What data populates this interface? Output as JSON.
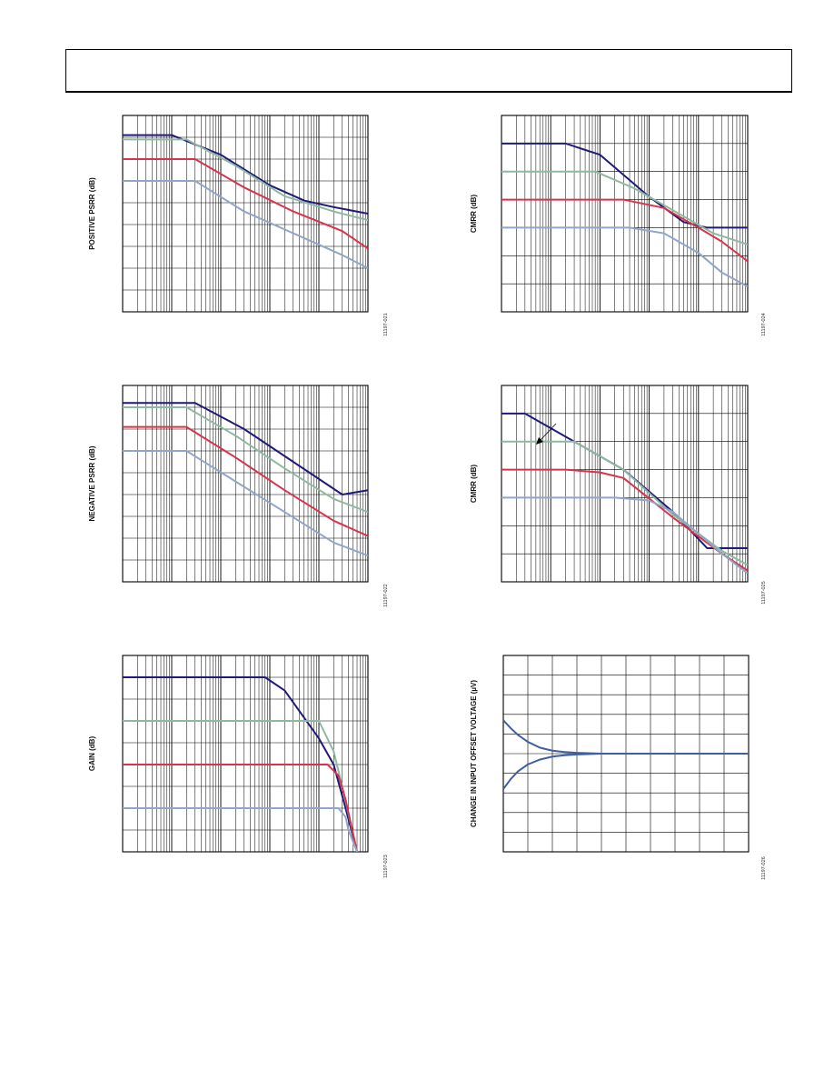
{
  "page": {
    "header": ""
  },
  "colors": {
    "navy": "#1f1a7a",
    "green": "#8fb8a0",
    "red": "#d8334a",
    "lightblue": "#8fa6c8",
    "blue": "#3f5f9f"
  },
  "chart_data": [
    {
      "id": "positive-psrr",
      "type": "line",
      "ylabel": "POSITIVE PSRR (dB)",
      "figure_id": "11197-021",
      "x_scale": "log",
      "grid": true,
      "xlim": [
        10,
        1000000
      ],
      "ylim": [
        0,
        9
      ],
      "series": [
        {
          "color": "#1f1a7a",
          "x": [
            10,
            100,
            1000,
            10000,
            50000,
            200000,
            1000000
          ],
          "y": [
            8.1,
            8.1,
            7.2,
            5.8,
            5.1,
            4.8,
            4.5
          ]
        },
        {
          "color": "#8fb8a0",
          "x": [
            10,
            200,
            2000,
            20000,
            200000,
            1000000
          ],
          "y": [
            7.9,
            7.9,
            6.7,
            5.3,
            4.6,
            4.2
          ]
        },
        {
          "color": "#d8334a",
          "x": [
            10,
            300,
            3000,
            30000,
            300000,
            1000000
          ],
          "y": [
            7.0,
            7.0,
            5.7,
            4.6,
            3.7,
            2.9
          ]
        },
        {
          "color": "#8fa6c8",
          "x": [
            10,
            300,
            3000,
            30000,
            300000,
            1000000
          ],
          "y": [
            6.0,
            6.0,
            4.6,
            3.6,
            2.6,
            2.0
          ]
        }
      ]
    },
    {
      "id": "cmrr-top",
      "type": "line",
      "ylabel": "CMRR (dB)",
      "figure_id": "11197-024",
      "x_scale": "log",
      "grid": true,
      "xlim": [
        10,
        1000000
      ],
      "ylim": [
        0,
        7
      ],
      "series": [
        {
          "color": "#1f1a7a",
          "x": [
            10,
            200,
            1000,
            10000,
            50000,
            150000,
            300000,
            1000000
          ],
          "y": [
            6.0,
            6.0,
            5.6,
            4.1,
            3.2,
            3.0,
            3.0,
            3.0
          ]
        },
        {
          "color": "#8fb8a0",
          "x": [
            10,
            800,
            5000,
            40000,
            200000,
            1000000
          ],
          "y": [
            5.0,
            5.0,
            4.4,
            3.5,
            2.8,
            2.4
          ]
        },
        {
          "color": "#d8334a",
          "x": [
            10,
            3000,
            20000,
            100000,
            300000,
            1000000
          ],
          "y": [
            4.0,
            4.0,
            3.7,
            3.0,
            2.5,
            1.8
          ]
        },
        {
          "color": "#8fa6c8",
          "x": [
            10,
            4000,
            20000,
            100000,
            300000,
            1000000
          ],
          "y": [
            3.0,
            3.0,
            2.8,
            2.1,
            1.4,
            0.9
          ]
        }
      ]
    },
    {
      "id": "negative-psrr",
      "type": "line",
      "ylabel": "NEGATIVE PSRR (dB)",
      "figure_id": "11197-022",
      "x_scale": "log",
      "grid": true,
      "xlim": [
        10,
        1000000
      ],
      "ylim": [
        0,
        9
      ],
      "series": [
        {
          "color": "#1f1a7a",
          "x": [
            10,
            300,
            3000,
            30000,
            300000,
            1000000
          ],
          "y": [
            8.2,
            8.2,
            7.0,
            5.5,
            4.0,
            4.2
          ]
        },
        {
          "color": "#8fb8a0",
          "x": [
            10,
            200,
            2000,
            20000,
            200000,
            1000000
          ],
          "y": [
            8.0,
            8.0,
            6.7,
            5.2,
            3.8,
            3.2
          ]
        },
        {
          "color": "#d8334a",
          "x": [
            10,
            200,
            2000,
            20000,
            200000,
            1000000
          ],
          "y": [
            7.1,
            7.1,
            5.7,
            4.2,
            2.8,
            2.1
          ]
        },
        {
          "color": "#8fa6c8",
          "x": [
            10,
            200,
            2000,
            20000,
            200000,
            1000000
          ],
          "y": [
            6.0,
            6.0,
            4.6,
            3.2,
            1.8,
            1.2
          ]
        }
      ]
    },
    {
      "id": "cmrr-bottom",
      "type": "line",
      "ylabel": "CMRR (dB)",
      "figure_id": "11197-025",
      "x_scale": "log",
      "grid": true,
      "xlim": [
        10,
        1000000
      ],
      "ylim": [
        0,
        7
      ],
      "series": [
        {
          "color": "#1f1a7a",
          "x": [
            10,
            30,
            300,
            3000,
            30000,
            150000,
            300000,
            1000000
          ],
          "y": [
            6.0,
            6.0,
            5.0,
            4.0,
            2.5,
            1.2,
            1.2,
            1.2
          ]
        },
        {
          "color": "#8fb8a0",
          "x": [
            10,
            50,
            300,
            3000,
            30000,
            300000,
            1000000
          ],
          "y": [
            5.0,
            5.0,
            5.0,
            4.0,
            2.4,
            1.1,
            0.6
          ]
        },
        {
          "color": "#d8334a",
          "x": [
            10,
            200,
            1000,
            3000,
            30000,
            300000,
            1000000
          ],
          "y": [
            4.0,
            4.0,
            3.9,
            3.7,
            2.3,
            1.0,
            0.4
          ]
        },
        {
          "color": "#8fa6c8",
          "x": [
            10,
            2000,
            10000,
            30000,
            300000,
            1000000
          ],
          "y": [
            3.0,
            3.0,
            2.9,
            2.5,
            1.0,
            0.3
          ]
        }
      ]
    },
    {
      "id": "gain",
      "type": "line",
      "ylabel": "GAIN (dB)",
      "figure_id": "11197-023",
      "x_scale": "log",
      "grid": true,
      "xlim": [
        10,
        1000000
      ],
      "ylim": [
        0,
        9
      ],
      "series": [
        {
          "color": "#1f1a7a",
          "x": [
            10,
            8000,
            20000,
            100000,
            200000,
            350000,
            600000
          ],
          "y": [
            8.0,
            8.0,
            7.4,
            5.2,
            4.0,
            2.0,
            0.0
          ]
        },
        {
          "color": "#8fb8a0",
          "x": [
            10,
            100000,
            200000,
            300000,
            600000
          ],
          "y": [
            6.0,
            6.0,
            4.6,
            3.0,
            0.0
          ]
        },
        {
          "color": "#d8334a",
          "x": [
            10,
            150000,
            250000,
            350000,
            600000
          ],
          "y": [
            4.0,
            4.0,
            3.5,
            2.4,
            0.0
          ]
        },
        {
          "color": "#8fa6c8",
          "x": [
            10,
            250000,
            350000,
            400000,
            600000
          ],
          "y": [
            2.0,
            2.0,
            1.6,
            1.0,
            0.0
          ]
        }
      ]
    },
    {
      "id": "offset-voltage-change",
      "type": "line",
      "ylabel": "CHANGE IN INPUT OFFSET VOLTAGE (µV)",
      "figure_id": "11197-026",
      "x_scale": "linear",
      "grid": true,
      "xlim": [
        0,
        10
      ],
      "ylim": [
        0,
        10
      ],
      "series": [
        {
          "color": "#3f5f9f",
          "x": [
            0,
            0.3,
            0.6,
            1.0,
            1.5,
            2.0,
            2.5,
            3.0,
            4.0,
            5.0,
            10.0
          ],
          "y": [
            6.7,
            6.3,
            5.95,
            5.6,
            5.3,
            5.15,
            5.08,
            5.04,
            5.0,
            5.0,
            5.0
          ]
        },
        {
          "color": "#3f5f9f",
          "x": [
            0,
            0.3,
            0.6,
            1.0,
            1.5,
            2.0,
            2.5,
            3.0,
            4.0,
            5.0,
            10.0
          ],
          "y": [
            3.2,
            3.7,
            4.1,
            4.45,
            4.7,
            4.85,
            4.92,
            4.96,
            5.0,
            5.0,
            5.0
          ]
        }
      ]
    }
  ]
}
